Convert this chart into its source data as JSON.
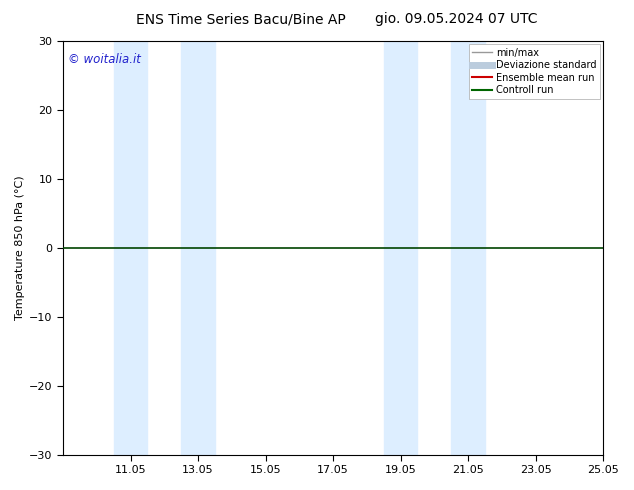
{
  "title_left": "ENS Time Series Bacu/Bine AP",
  "title_right": "gio. 09.05.2024 07 UTC",
  "ylabel": "Temperature 850 hPa (°C)",
  "ylim": [
    -30,
    30
  ],
  "yticks": [
    -30,
    -20,
    -10,
    0,
    10,
    20,
    30
  ],
  "xtick_labels": [
    "11.05",
    "13.05",
    "15.05",
    "17.05",
    "19.05",
    "21.05",
    "23.05",
    "25.05"
  ],
  "xtick_positions": [
    2,
    4,
    6,
    8,
    10,
    12,
    14,
    16
  ],
  "xlim": [
    0,
    16
  ],
  "watermark": "© woitalia.it",
  "watermark_color": "#2222cc",
  "bg_color": "#ffffff",
  "plot_bg_color": "#ffffff",
  "shaded_bands": [
    {
      "x_start": 1.5,
      "x_end": 2.5,
      "color": "#ddeeff"
    },
    {
      "x_start": 3.5,
      "x_end": 4.5,
      "color": "#ddeeff"
    },
    {
      "x_start": 9.5,
      "x_end": 10.5,
      "color": "#ddeeff"
    },
    {
      "x_start": 11.5,
      "x_end": 12.5,
      "color": "#ddeeff"
    }
  ],
  "zero_line_color": "#004400",
  "flat_y_value": 0,
  "legend_items": [
    {
      "label": "min/max",
      "color": "#999999",
      "lw": 1.0
    },
    {
      "label": "Deviazione standard",
      "color": "#bbccdd",
      "lw": 5
    },
    {
      "label": "Ensemble mean run",
      "color": "#cc0000",
      "lw": 1.5
    },
    {
      "label": "Controll run",
      "color": "#006600",
      "lw": 1.5
    }
  ],
  "title_fontsize": 10,
  "tick_fontsize": 8,
  "ylabel_fontsize": 8
}
